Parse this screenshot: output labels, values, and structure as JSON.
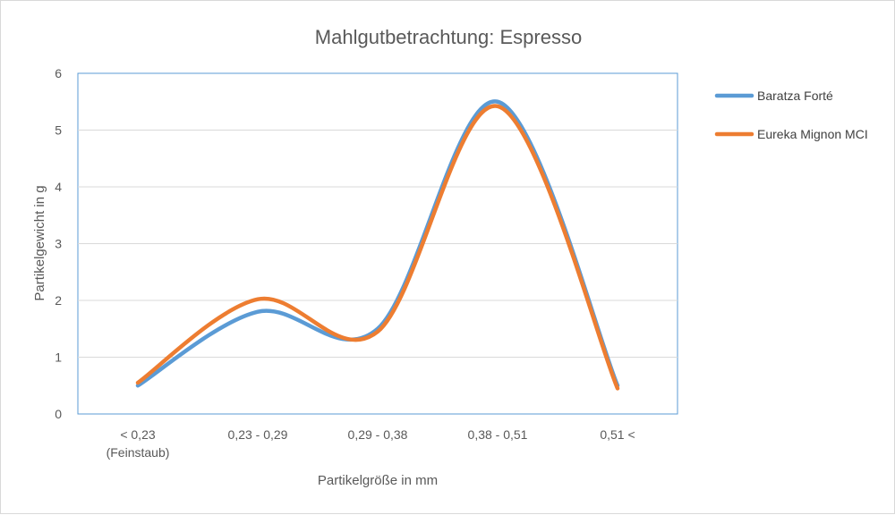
{
  "chart_data": {
    "type": "line",
    "title": "Mahlgutbetrachtung: Espresso",
    "xlabel": "Partikelgröße in mm",
    "ylabel": "Partikelgewicht in g",
    "categories": [
      [
        "< 0,23",
        "(Feinstaub)"
      ],
      [
        "0,23 - 0,29"
      ],
      [
        "0,29 - 0,38"
      ],
      [
        "0,38 - 0,51"
      ],
      [
        "0,51 <"
      ]
    ],
    "ylim": [
      0,
      6
    ],
    "yticks": [
      0,
      1,
      2,
      3,
      4,
      5,
      6
    ],
    "grid": true,
    "smooth": true,
    "legend": "right",
    "series": [
      {
        "name": "Baratza Forté",
        "values": [
          0.5,
          1.8,
          1.5,
          5.5,
          0.5
        ],
        "color": "#5B9BD5"
      },
      {
        "name": "Eureka Mignon MCI",
        "values": [
          0.55,
          2.02,
          1.45,
          5.42,
          0.45
        ],
        "color": "#ED7D31"
      }
    ]
  }
}
